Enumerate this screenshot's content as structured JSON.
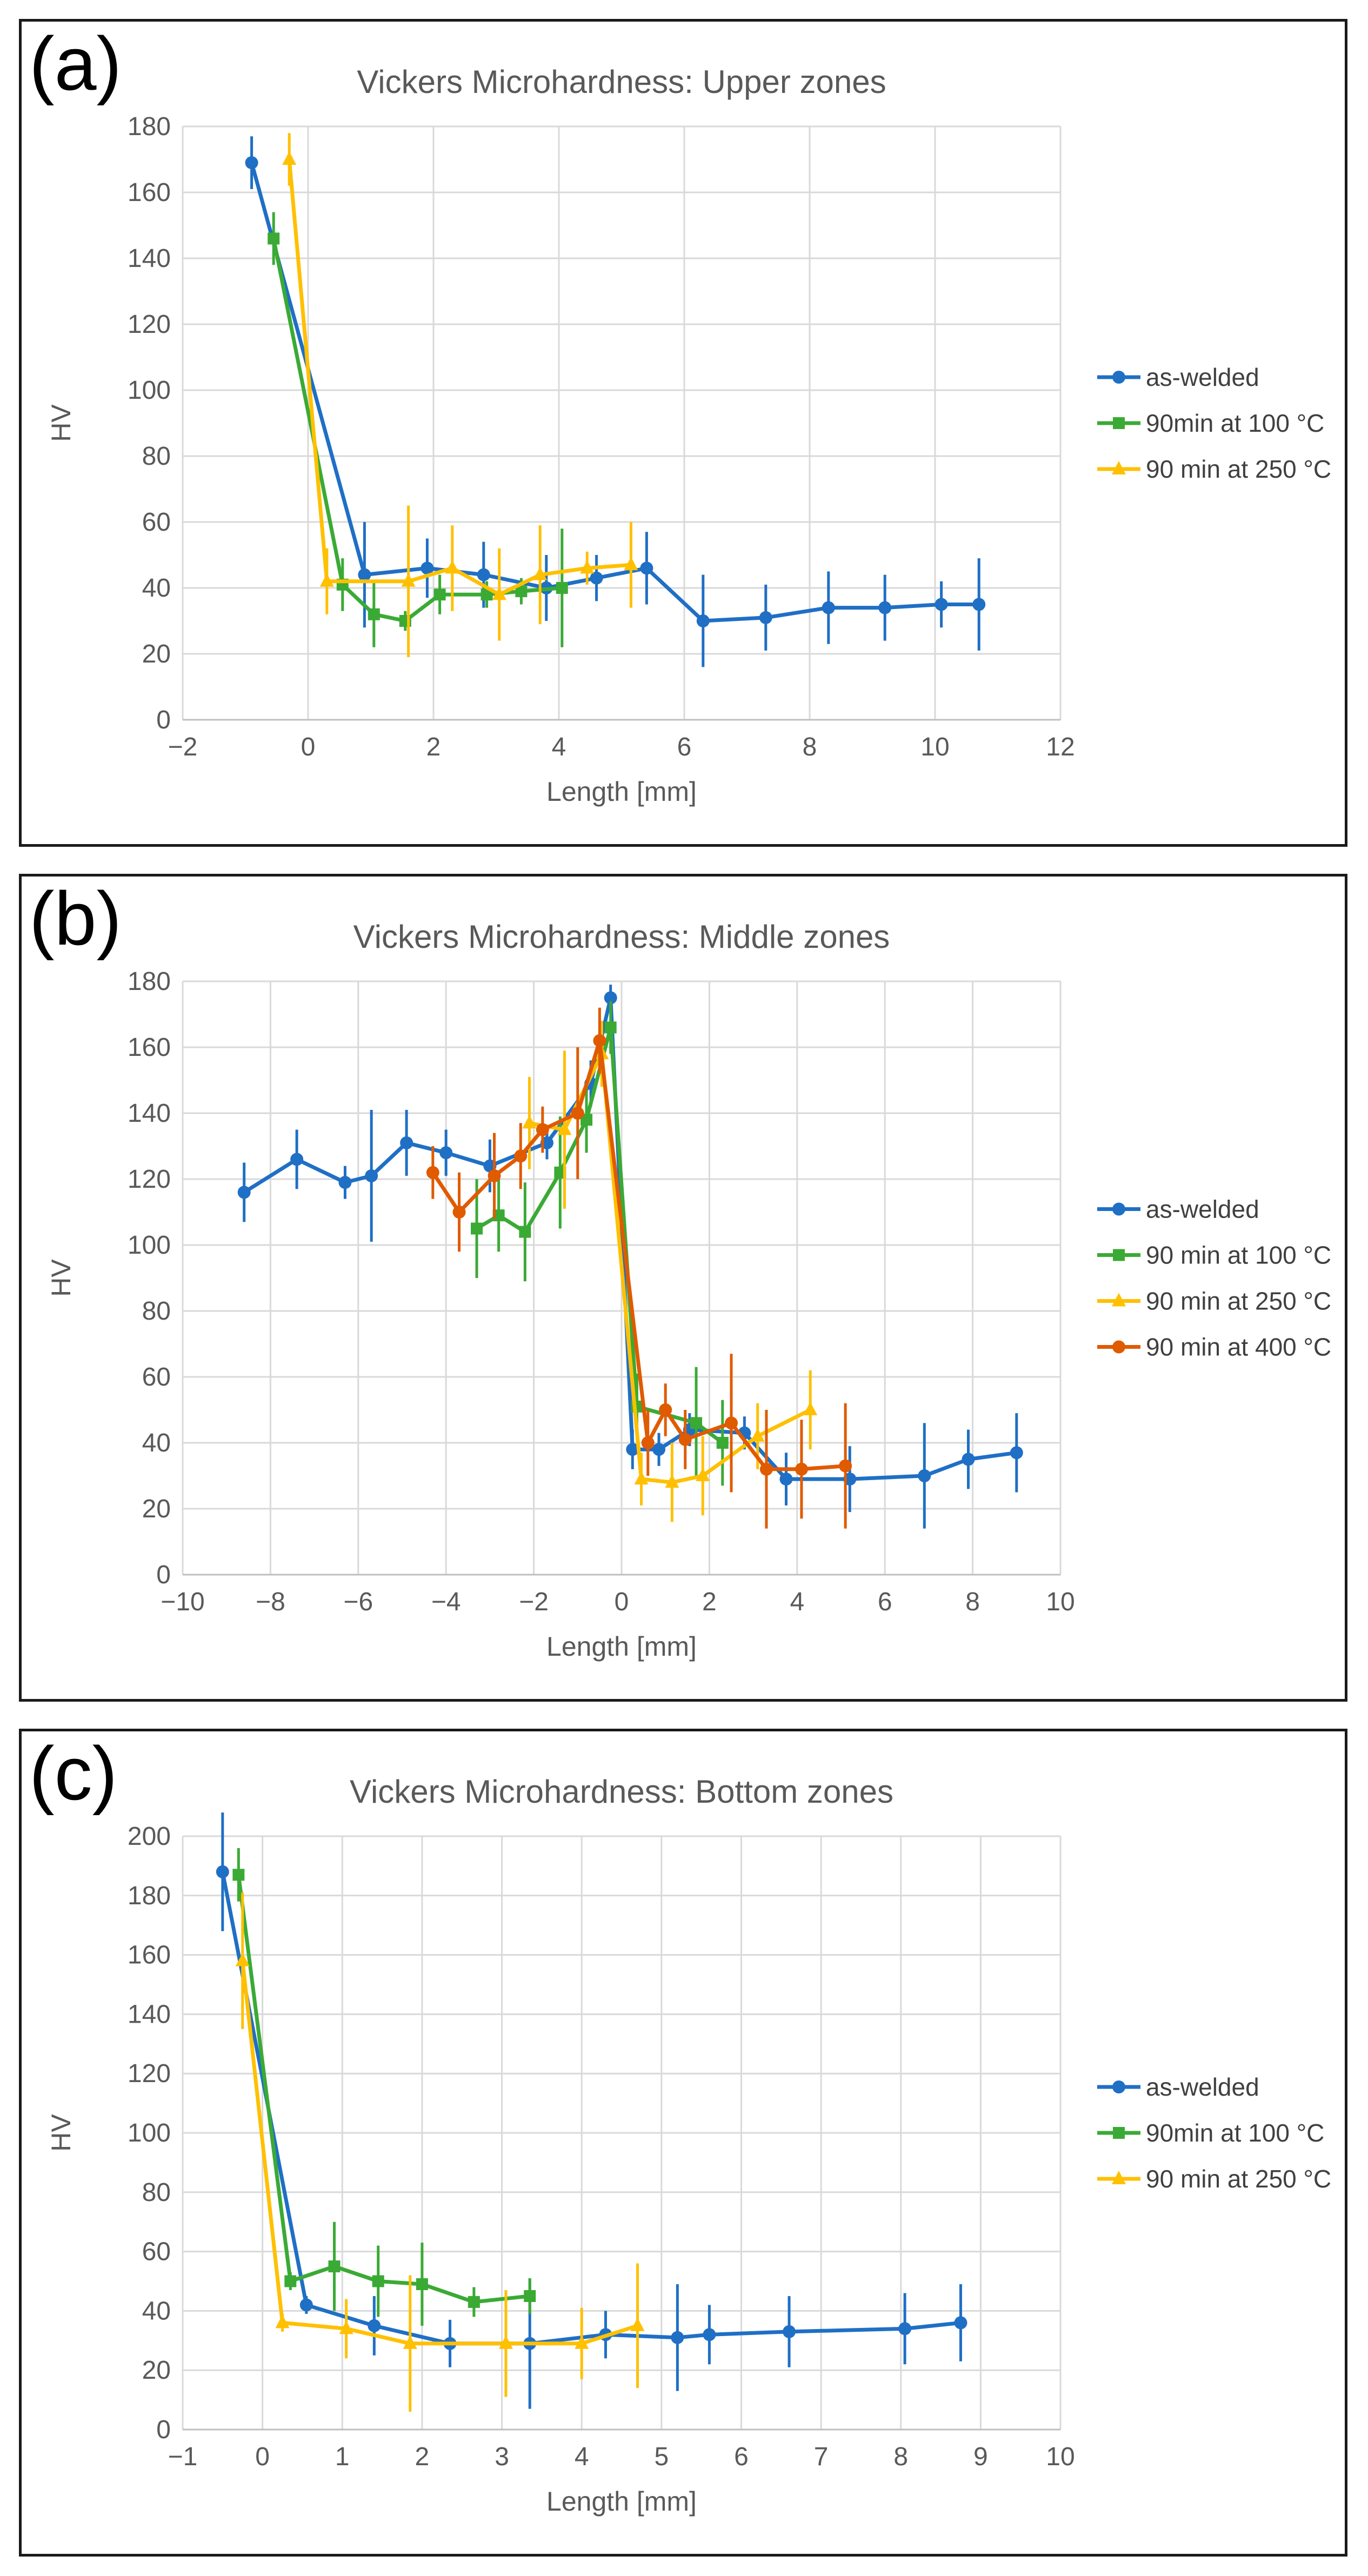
{
  "panels": [
    "(a)",
    "(b)",
    "(c)"
  ],
  "colors": {
    "as_welded": "#1f6fc5",
    "c100": "#3aaa35",
    "c250": "#ffc000",
    "c400": "#e05a00"
  },
  "chart_data": [
    {
      "type": "line",
      "title": "Vickers Microhardness: Upper zones",
      "xlabel": "Length [mm]",
      "ylabel": "HV",
      "xlim": [
        -2,
        12
      ],
      "ylim": [
        0,
        180
      ],
      "xticks": [
        -2,
        0,
        2,
        4,
        6,
        8,
        10,
        12
      ],
      "yticks": [
        0,
        20,
        40,
        60,
        80,
        100,
        120,
        140,
        160,
        180
      ],
      "xtick_labels": [
        "−2",
        "0",
        "2",
        "4",
        "6",
        "8",
        "10",
        "12"
      ],
      "legend": "right",
      "series": [
        {
          "name": "as-welded",
          "color_key": "as_welded",
          "marker": "circle",
          "x": [
            -0.9,
            0.9,
            1.9,
            2.8,
            3.8,
            4.6,
            5.4,
            6.3,
            7.3,
            8.3,
            9.2,
            10.1,
            10.7
          ],
          "y": [
            169,
            44,
            46,
            44,
            40,
            43,
            46,
            30,
            31,
            34,
            34,
            35,
            35
          ],
          "err": [
            8,
            16,
            9,
            10,
            10,
            7,
            11,
            14,
            10,
            11,
            10,
            7,
            14
          ]
        },
        {
          "name": "90min at 100 °C",
          "color_key": "c100",
          "marker": "square",
          "x": [
            -0.55,
            0.55,
            1.05,
            1.55,
            2.1,
            2.85,
            3.4,
            4.05
          ],
          "y": [
            146,
            41,
            32,
            30,
            38,
            38,
            39,
            40
          ],
          "err": [
            8,
            8,
            10,
            3,
            6,
            4,
            4,
            18
          ]
        },
        {
          "name": "90 min at 250 °C",
          "color_key": "c250",
          "marker": "triangle",
          "x": [
            -0.3,
            0.3,
            1.6,
            2.3,
            3.05,
            3.7,
            4.45,
            5.15
          ],
          "y": [
            170,
            42,
            42,
            46,
            38,
            44,
            46,
            47
          ],
          "err": [
            8,
            10,
            23,
            13,
            14,
            15,
            5,
            13
          ]
        }
      ]
    },
    {
      "type": "line",
      "title": "Vickers Microhardness: Middle zones",
      "xlabel": "Length [mm]",
      "ylabel": "HV",
      "xlim": [
        -10,
        10
      ],
      "ylim": [
        0,
        180
      ],
      "xticks": [
        -10,
        -8,
        -6,
        -4,
        -2,
        0,
        2,
        4,
        6,
        8,
        10
      ],
      "yticks": [
        0,
        20,
        40,
        60,
        80,
        100,
        120,
        140,
        160,
        180
      ],
      "xtick_labels": [
        "−10",
        "−8",
        "−6",
        "−4",
        "−2",
        "0",
        "2",
        "4",
        "6",
        "8",
        "10"
      ],
      "legend": "right",
      "series": [
        {
          "name": "as-welded",
          "color_key": "as_welded",
          "marker": "circle",
          "x": [
            -8.6,
            -7.4,
            -6.3,
            -5.7,
            -4.9,
            -4.0,
            -3.0,
            -1.7,
            -0.7,
            -0.25,
            0.25,
            0.85,
            1.55,
            2.8,
            3.75,
            5.2,
            6.9,
            7.9,
            9.0
          ],
          "y": [
            116,
            126,
            119,
            121,
            131,
            128,
            124,
            131,
            149,
            175,
            38,
            38,
            44,
            43,
            29,
            29,
            30,
            35,
            37
          ],
          "err": [
            9,
            9,
            5,
            20,
            10,
            7,
            8,
            5,
            7,
            4,
            6,
            5,
            5,
            5,
            8,
            10,
            16,
            9,
            12
          ]
        },
        {
          "name": "90 min at 100 °C",
          "color_key": "c100",
          "marker": "square",
          "x": [
            -3.3,
            -2.8,
            -2.2,
            -1.4,
            -0.8,
            -0.25,
            0.35,
            1.7,
            2.3
          ],
          "y": [
            105,
            109,
            104,
            122,
            138,
            166,
            51,
            46,
            40
          ],
          "err": [
            15,
            11,
            15,
            17,
            10,
            8,
            10,
            17,
            13
          ]
        },
        {
          "name": "90 min at 250 °C",
          "color_key": "c250",
          "marker": "triangle",
          "x": [
            -2.1,
            -1.3,
            -0.45,
            0.45,
            1.15,
            1.85,
            3.1,
            4.3
          ],
          "y": [
            137,
            135,
            158,
            29,
            28,
            30,
            42,
            50
          ],
          "err": [
            14,
            24,
            10,
            8,
            12,
            12,
            10,
            12
          ]
        },
        {
          "name": "90 min at 400 °C",
          "color_key": "c400",
          "marker": "circle",
          "x": [
            -4.3,
            -3.7,
            -2.9,
            -2.3,
            -1.8,
            -1.0,
            -0.5,
            0.6,
            1.0,
            1.45,
            2.5,
            3.3,
            4.1,
            5.1
          ],
          "y": [
            122,
            110,
            121,
            127,
            135,
            140,
            162,
            40,
            50,
            41,
            46,
            32,
            32,
            33
          ],
          "err": [
            8,
            12,
            13,
            10,
            7,
            20,
            10,
            10,
            8,
            9,
            21,
            18,
            15,
            19
          ]
        }
      ]
    },
    {
      "type": "line",
      "title": "Vickers Microhardness: Bottom zones",
      "xlabel": "Length [mm]",
      "ylabel": "HV",
      "xlim": [
        -1,
        10
      ],
      "ylim": [
        0,
        200
      ],
      "xticks": [
        -1,
        0,
        1,
        2,
        3,
        4,
        5,
        6,
        7,
        8,
        9,
        10
      ],
      "yticks": [
        0,
        20,
        40,
        60,
        80,
        100,
        120,
        140,
        160,
        180,
        200
      ],
      "xtick_labels": [
        "−1",
        "0",
        "1",
        "2",
        "3",
        "4",
        "5",
        "6",
        "7",
        "8",
        "9",
        "10"
      ],
      "legend": "right",
      "series": [
        {
          "name": "as-welded",
          "color_key": "as_welded",
          "marker": "circle",
          "x": [
            -0.5,
            0.55,
            1.4,
            2.35,
            3.35,
            4.3,
            5.2,
            5.6,
            6.6,
            8.05,
            8.75
          ],
          "y": [
            188,
            42,
            35,
            29,
            29,
            32,
            31,
            32,
            33,
            34,
            36
          ],
          "err": [
            20,
            3,
            10,
            8,
            22,
            8,
            18,
            10,
            12,
            12,
            13
          ]
        },
        {
          "name": "90min at 100 °C",
          "color_key": "c100",
          "marker": "square",
          "x": [
            -0.3,
            0.35,
            0.9,
            1.45,
            2.0,
            2.65,
            3.35
          ],
          "y": [
            187,
            50,
            55,
            50,
            49,
            43,
            45
          ],
          "err": [
            9,
            3,
            15,
            12,
            14,
            5,
            6
          ]
        },
        {
          "name": "90 min at 250 °C",
          "color_key": "c250",
          "marker": "triangle",
          "x": [
            -0.25,
            0.25,
            1.05,
            1.85,
            3.05,
            4.0,
            4.7
          ],
          "y": [
            158,
            36,
            34,
            29,
            29,
            29,
            35
          ],
          "err": [
            23,
            3,
            10,
            23,
            18,
            12,
            21
          ]
        }
      ]
    }
  ]
}
